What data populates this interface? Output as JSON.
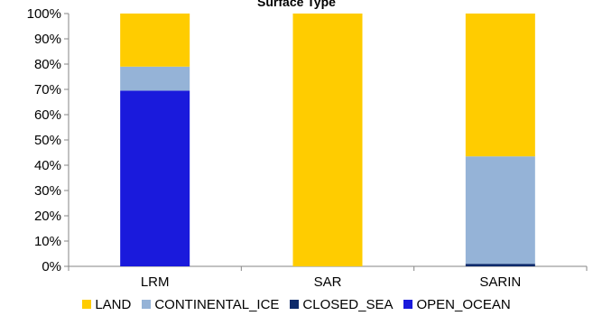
{
  "chart_data": {
    "type": "bar",
    "stacked": true,
    "normalized": true,
    "title": "Surface Type",
    "categories": [
      "LRM",
      "SAR",
      "SARIN"
    ],
    "series": [
      {
        "name": "OPEN_OCEAN",
        "color": "#1a1adc",
        "values": [
          69.5,
          0,
          0
        ]
      },
      {
        "name": "CLOSED_SEA",
        "color": "#0d2a6b",
        "values": [
          0,
          0,
          1
        ]
      },
      {
        "name": "CONTINENTAL_ICE",
        "color": "#95b3d7",
        "values": [
          9.5,
          0,
          42.5
        ]
      },
      {
        "name": "LAND",
        "color": "#ffcc00",
        "values": [
          21,
          100,
          56.5
        ]
      }
    ],
    "legend_order": [
      "LAND",
      "CONTINENTAL_ICE",
      "CLOSED_SEA",
      "OPEN_OCEAN"
    ],
    "ylim": [
      0,
      100
    ],
    "yticks": [
      "0%",
      "10%",
      "20%",
      "30%",
      "40%",
      "50%",
      "60%",
      "70%",
      "80%",
      "90%",
      "100%"
    ],
    "legend_position": "bottom",
    "grid": false
  }
}
